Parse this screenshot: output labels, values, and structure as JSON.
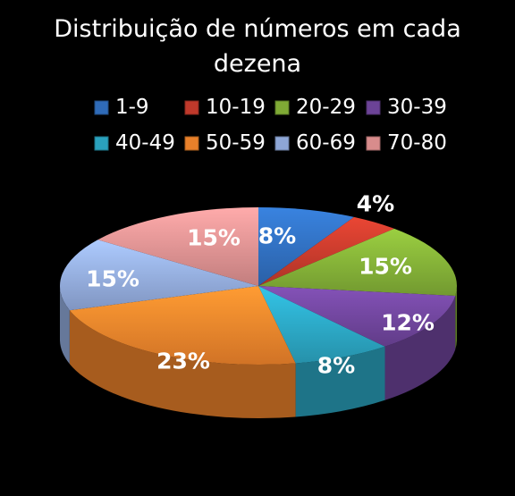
{
  "chart_data": {
    "type": "pie",
    "title_lines": [
      "Distribuição de números em cada",
      "dezena"
    ],
    "legend_placement": "top",
    "categories": [
      "1-9",
      "10-19",
      "20-29",
      "30-39",
      "40-49",
      "50-59",
      "60-69",
      "70-80"
    ],
    "values": [
      8,
      4,
      15,
      12,
      8,
      23,
      15,
      15
    ],
    "value_labels": [
      "8%",
      "4%",
      "15%",
      "12%",
      "8%",
      "23%",
      "15%",
      "15%"
    ],
    "colors": [
      "#2f6bb8",
      "#c0392b",
      "#7faa35",
      "#6c4397",
      "#2aa1bd",
      "#e8802a",
      "#8ea6d6",
      "#d88c8c"
    ],
    "style": "3d-exploded-none"
  }
}
